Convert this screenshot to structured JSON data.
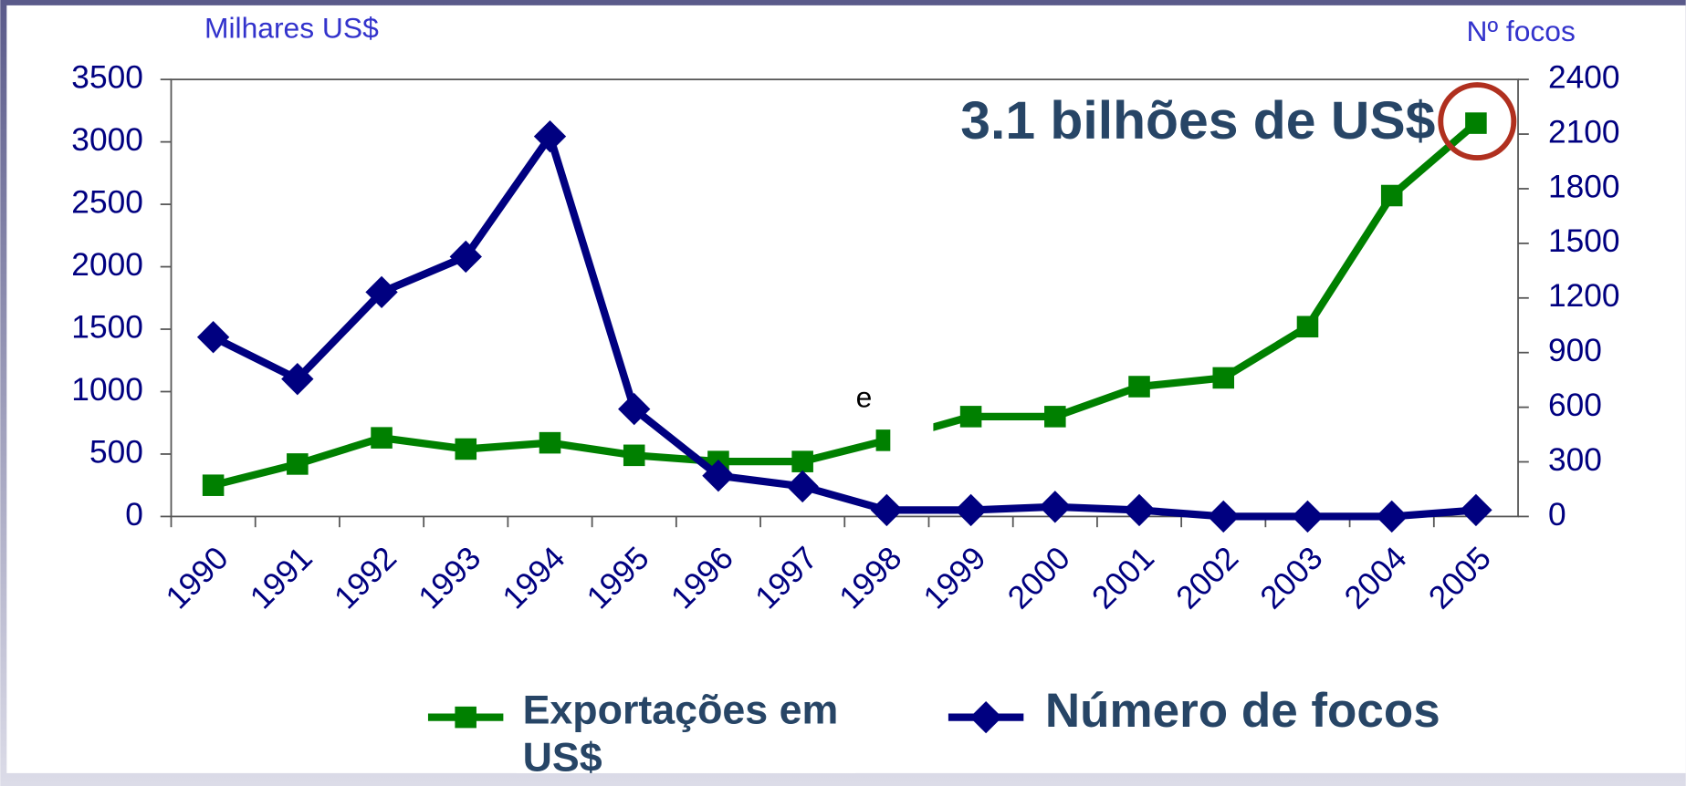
{
  "chart_data": {
    "type": "line",
    "annotations": [
      "3.1 bilhões de US$",
      "e"
    ],
    "y_label": "Milhares US$",
    "y2_label": "Nº focos",
    "categories": [
      "1990",
      "1991",
      "1992",
      "1993",
      "1994",
      "1995",
      "1996",
      "1997",
      "1998",
      "1999",
      "2000",
      "2001",
      "2002",
      "2003",
      "2004",
      "2005"
    ],
    "series": [
      {
        "name": "Exportações em US$",
        "color": "#008000",
        "values": [
          250,
          420,
          630,
          540,
          590,
          490,
          440,
          440,
          610,
          800,
          800,
          1040,
          1110,
          1520,
          2570,
          3150
        ]
      },
      {
        "name": "Número de focos",
        "color": "#000080",
        "axis": "y2",
        "values": [
          985,
          755,
          1232,
          1427,
          2087,
          590,
          224,
          165,
          35,
          35,
          53,
          35,
          0,
          0,
          0,
          35
        ]
      }
    ],
    "ylim": [
      0,
      3500
    ],
    "yticks": [
      0,
      500,
      1000,
      1500,
      2000,
      2500,
      3000,
      3500
    ],
    "y2lim": [
      0,
      2400
    ],
    "y2ticks": [
      0,
      300,
      600,
      900,
      1200,
      1500,
      1800,
      2100,
      2400
    ]
  }
}
